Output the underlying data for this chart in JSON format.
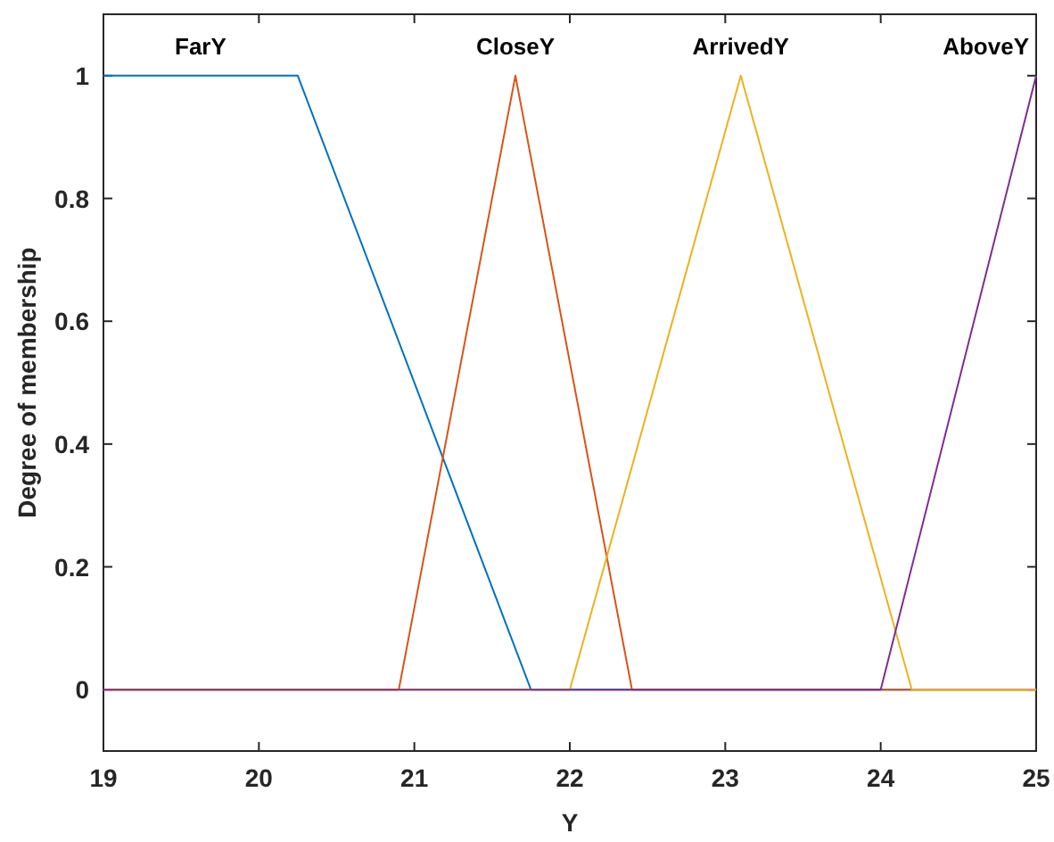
{
  "chart_data": {
    "type": "line",
    "xlabel": "Y",
    "ylabel": "Degree of membership",
    "xlim": [
      19,
      25
    ],
    "ylim": [
      -0.1,
      1.1
    ],
    "xticks": [
      19,
      20,
      21,
      22,
      23,
      24,
      25
    ],
    "yticks": [
      0,
      0.2,
      0.4,
      0.6,
      0.8,
      1
    ],
    "grid": false,
    "series": [
      {
        "name": "FarY",
        "color": "#0072bd",
        "x": [
          19,
          20.25,
          21.75,
          25
        ],
        "values": [
          1,
          1,
          0,
          0
        ]
      },
      {
        "name": "CloseY",
        "color": "#d95319",
        "x": [
          19,
          20.9,
          21.65,
          22.4,
          25
        ],
        "values": [
          0,
          0,
          1,
          0,
          0
        ]
      },
      {
        "name": "ArrivedY",
        "color": "#edb120",
        "x": [
          19,
          22,
          23.1,
          24.2,
          25
        ],
        "values": [
          0,
          0,
          1,
          0,
          0
        ]
      },
      {
        "name": "AboveY",
        "color": "#7e2f8e",
        "x": [
          19,
          24,
          25
        ],
        "values": [
          0,
          0,
          1
        ]
      }
    ]
  }
}
